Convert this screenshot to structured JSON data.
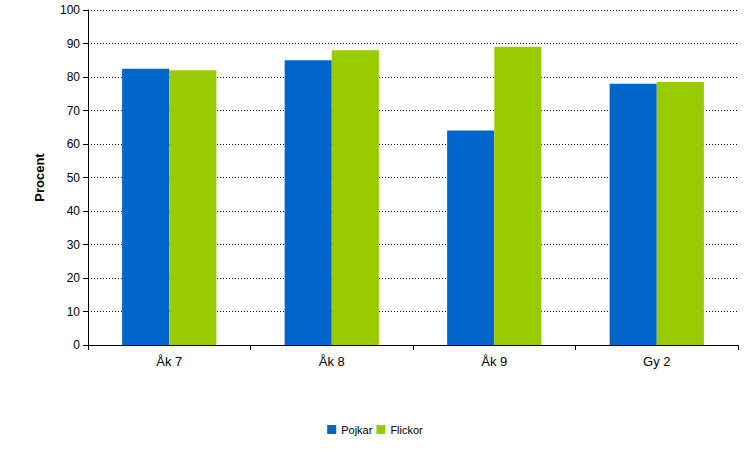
{
  "chart_data": {
    "type": "bar",
    "categories": [
      "Åk 7",
      "Åk 8",
      "Åk 9",
      "Gy 2"
    ],
    "series": [
      {
        "name": "Pojkar",
        "color": "#0066cc",
        "values": [
          82.5,
          85,
          64,
          78
        ]
      },
      {
        "name": "Flickor",
        "color": "#99cc00",
        "values": [
          82,
          88,
          89,
          78.5
        ]
      }
    ],
    "y_label": "Procent",
    "ylim": [
      0,
      100
    ],
    "yticks": [
      0,
      10,
      20,
      30,
      40,
      50,
      60,
      70,
      80,
      90,
      100
    ],
    "grid": true,
    "legend": "bottom"
  }
}
